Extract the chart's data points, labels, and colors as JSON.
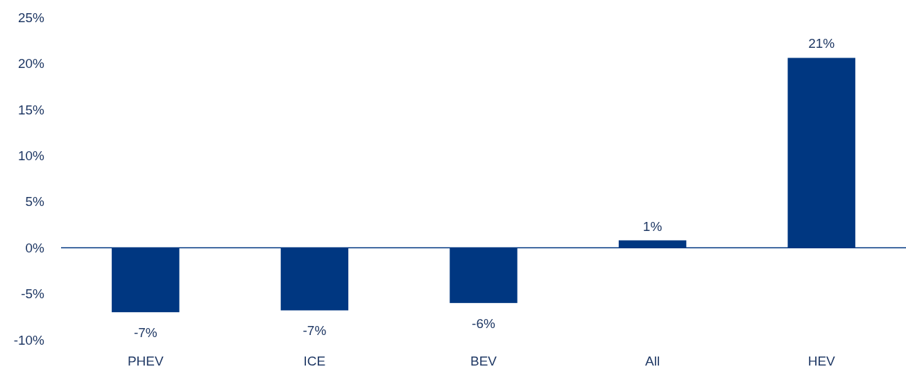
{
  "chart_data": {
    "type": "bar",
    "categories": [
      "PHEV",
      "ICE",
      "BEV",
      "All",
      "HEV"
    ],
    "values": [
      -7.0,
      -6.8,
      -6.0,
      0.8,
      20.6
    ],
    "value_labels": [
      "-7%",
      "-7%",
      "-6%",
      "1%",
      "21%"
    ],
    "color": "#003781",
    "ylim": [
      -10,
      25
    ],
    "yticks": [
      {
        "value": -10,
        "label": "-10%"
      },
      {
        "value": -5,
        "label": "-5%"
      },
      {
        "value": 0,
        "label": "0%"
      },
      {
        "value": 5,
        "label": "5%"
      },
      {
        "value": 10,
        "label": "10%"
      },
      {
        "value": 15,
        "label": "15%"
      },
      {
        "value": 20,
        "label": "20%"
      },
      {
        "value": 25,
        "label": "25%"
      }
    ],
    "ref_lines": [
      {
        "axis": "y",
        "value": 0,
        "color": "#003781"
      }
    ],
    "grid": false
  }
}
